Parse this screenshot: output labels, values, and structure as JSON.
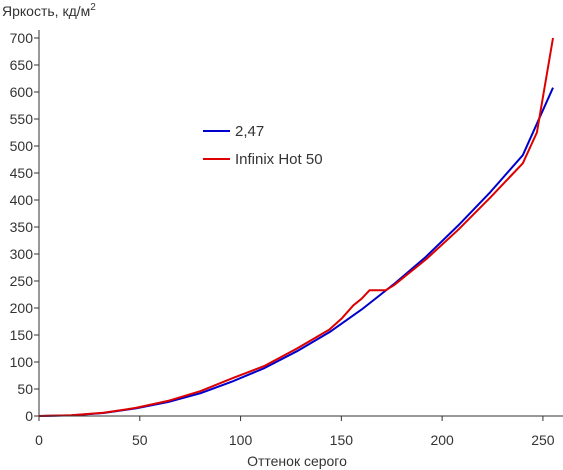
{
  "chart_data": {
    "type": "line",
    "title": "",
    "ylabel": "Яркость, кд/м",
    "ylabel_superscript": "2",
    "xlabel": "Оттенок серого",
    "xlim": [
      0,
      255
    ],
    "ylim": [
      0,
      700
    ],
    "x_ticks": [
      0,
      50,
      100,
      150,
      200,
      250
    ],
    "y_ticks": [
      0,
      50,
      100,
      150,
      200,
      250,
      300,
      350,
      400,
      450,
      500,
      550,
      600,
      650,
      700
    ],
    "grid": false,
    "legend_position": "center-left",
    "series": [
      {
        "name": "2,47",
        "color": "#0000cc",
        "x": [
          0,
          16,
          32,
          48,
          64,
          80,
          96,
          112,
          128,
          144,
          160,
          176,
          192,
          208,
          224,
          240,
          255
        ],
        "y": [
          0,
          1.1,
          5.5,
          14,
          26,
          42,
          64,
          89,
          120,
          155,
          197,
          244,
          295,
          353,
          415,
          483,
          608
        ]
      },
      {
        "name": "Infinix Hot 50",
        "color": "#dd0000",
        "x": [
          0,
          16,
          32,
          48,
          64,
          80,
          96,
          112,
          128,
          144,
          150,
          156,
          160,
          164,
          168,
          172,
          176,
          192,
          208,
          224,
          240,
          247,
          255
        ],
        "y": [
          0,
          1.5,
          6,
          15,
          28,
          46,
          70,
          93,
          125,
          160,
          180,
          205,
          217,
          233,
          233,
          233,
          242,
          290,
          345,
          405,
          468,
          525,
          700
        ]
      }
    ]
  }
}
